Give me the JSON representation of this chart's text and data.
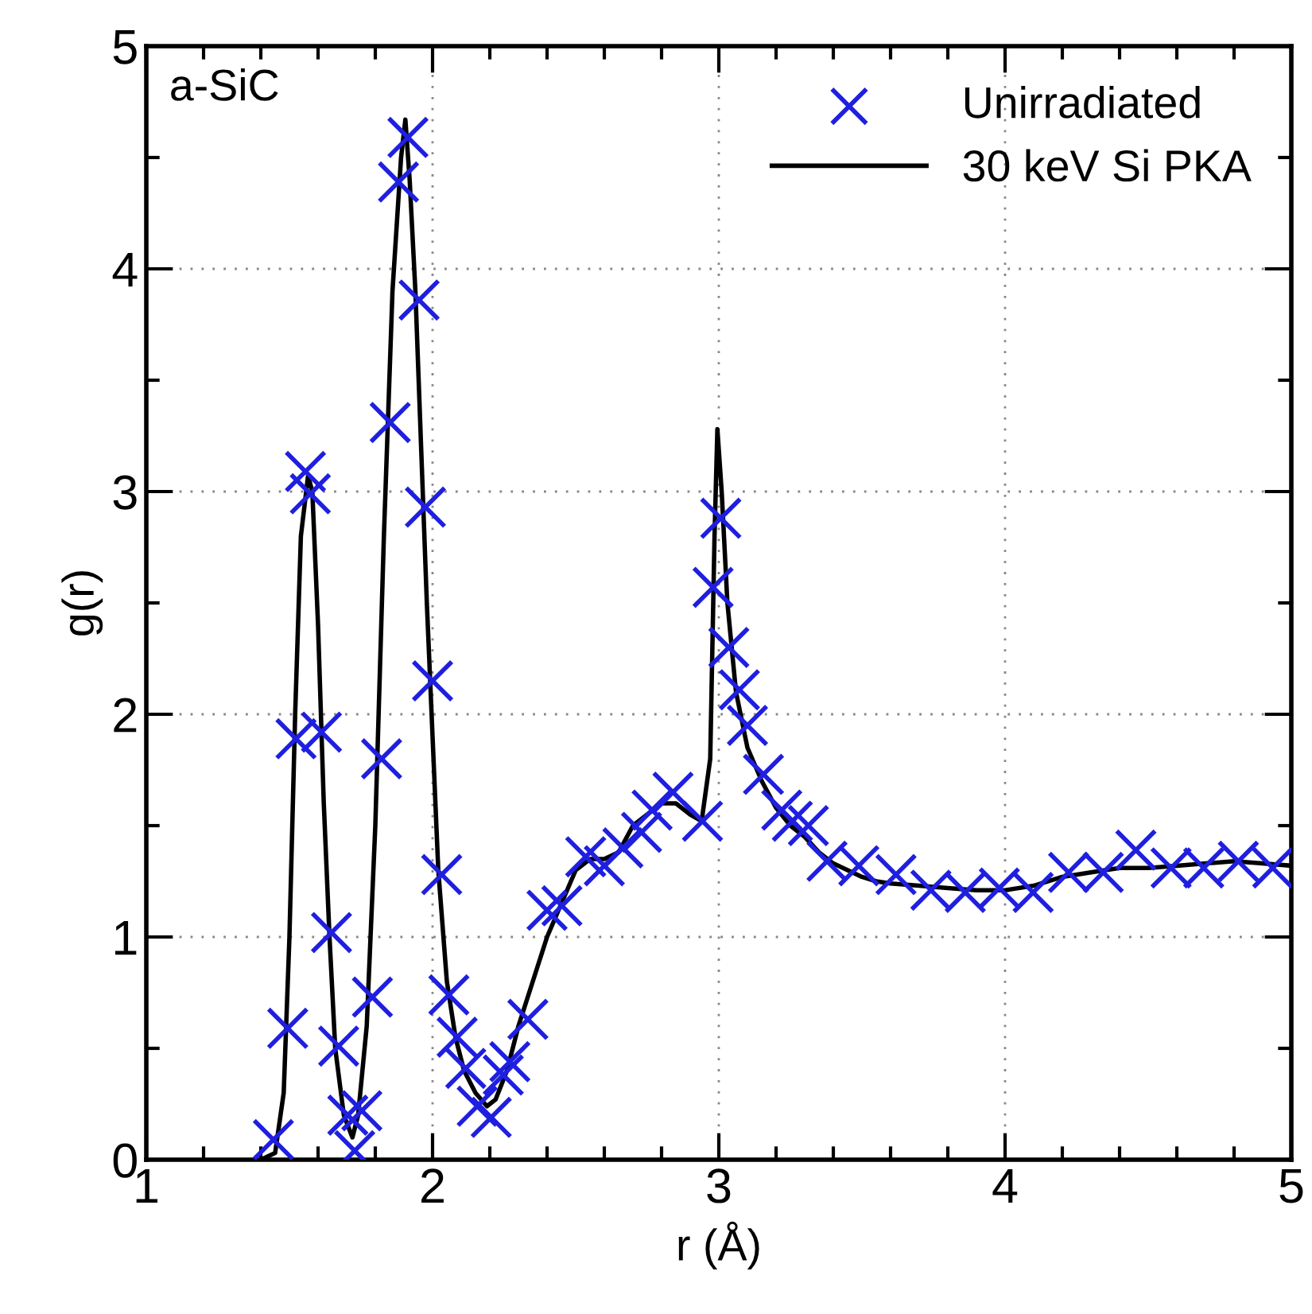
{
  "chart_data": {
    "type": "line",
    "xlabel": "r (Å)",
    "ylabel": "g(r)",
    "annotations": [
      "a-SiC"
    ],
    "xlim": [
      1,
      5
    ],
    "ylim": [
      0,
      5
    ],
    "xticks": [
      1,
      2,
      3,
      4,
      5
    ],
    "yticks": [
      0,
      1,
      2,
      3,
      4,
      5
    ],
    "grid": true,
    "legend": "top right",
    "series": [
      {
        "name": "Unirradiated",
        "type": "scatter",
        "marker": "cross",
        "color": "#1f1fe0",
        "x": [
          1.444,
          1.494,
          1.523,
          1.556,
          1.573,
          1.612,
          1.647,
          1.672,
          1.704,
          1.728,
          1.753,
          1.79,
          1.822,
          1.852,
          1.881,
          1.914,
          1.953,
          1.975,
          2.0,
          2.032,
          2.057,
          2.086,
          2.116,
          2.156,
          2.205,
          2.247,
          2.27,
          2.333,
          2.4,
          2.452,
          2.535,
          2.6,
          2.665,
          2.73,
          2.767,
          2.84,
          2.943,
          2.98,
          3.007,
          3.035,
          3.072,
          3.1,
          3.156,
          3.22,
          3.257,
          3.313,
          3.378,
          3.489,
          3.619,
          3.741,
          3.861,
          3.98,
          4.098,
          4.222,
          4.343,
          4.457,
          4.58,
          4.694,
          4.815,
          4.935
        ],
        "values": [
          0.09,
          0.59,
          1.89,
          3.09,
          2.99,
          1.92,
          1.02,
          0.51,
          0.2,
          0.04,
          0.22,
          0.73,
          1.8,
          3.31,
          4.39,
          4.59,
          3.86,
          2.93,
          2.15,
          1.28,
          0.74,
          0.55,
          0.41,
          0.24,
          0.19,
          0.38,
          0.44,
          0.63,
          1.12,
          1.14,
          1.36,
          1.32,
          1.4,
          1.47,
          1.57,
          1.65,
          1.52,
          2.57,
          2.88,
          2.3,
          2.11,
          1.95,
          1.73,
          1.57,
          1.52,
          1.5,
          1.34,
          1.32,
          1.28,
          1.21,
          1.2,
          1.22,
          1.2,
          1.29,
          1.29,
          1.39,
          1.31,
          1.31,
          1.34,
          1.31
        ]
      },
      {
        "name": "30 keV Si PKA",
        "marker": "none",
        "line_style": "solid",
        "color": "#000000",
        "x": [
          1.4,
          1.45,
          1.48,
          1.5,
          1.52,
          1.54,
          1.565,
          1.58,
          1.6,
          1.62,
          1.64,
          1.66,
          1.69,
          1.72,
          1.74,
          1.77,
          1.8,
          1.83,
          1.86,
          1.89,
          1.905,
          1.92,
          1.94,
          1.96,
          1.98,
          2.0,
          2.02,
          2.05,
          2.08,
          2.11,
          2.15,
          2.19,
          2.22,
          2.26,
          2.3,
          2.35,
          2.4,
          2.45,
          2.5,
          2.55,
          2.6,
          2.65,
          2.7,
          2.75,
          2.8,
          2.85,
          2.9,
          2.94,
          2.97,
          2.985,
          2.995,
          3.01,
          3.03,
          3.06,
          3.1,
          3.15,
          3.2,
          3.25,
          3.3,
          3.35,
          3.4,
          3.45,
          3.5,
          3.55,
          3.6,
          3.7,
          3.8,
          3.9,
          4.0,
          4.1,
          4.2,
          4.3,
          4.4,
          4.5,
          4.6,
          4.7,
          4.8,
          4.9,
          5.0
        ],
        "values": [
          0,
          0.03,
          0.3,
          1.0,
          2.0,
          2.8,
          3.07,
          3.0,
          2.4,
          1.6,
          1.0,
          0.5,
          0.2,
          0.1,
          0.2,
          0.6,
          1.5,
          2.8,
          3.9,
          4.5,
          4.67,
          4.4,
          3.9,
          3.2,
          2.5,
          1.9,
          1.3,
          0.8,
          0.55,
          0.4,
          0.3,
          0.24,
          0.27,
          0.4,
          0.6,
          0.8,
          1.0,
          1.15,
          1.3,
          1.35,
          1.35,
          1.38,
          1.5,
          1.55,
          1.6,
          1.6,
          1.55,
          1.52,
          1.8,
          2.8,
          3.28,
          3.0,
          2.5,
          2.1,
          1.85,
          1.7,
          1.58,
          1.5,
          1.45,
          1.38,
          1.33,
          1.3,
          1.27,
          1.25,
          1.24,
          1.23,
          1.22,
          1.21,
          1.21,
          1.23,
          1.27,
          1.29,
          1.31,
          1.31,
          1.32,
          1.33,
          1.34,
          1.33,
          1.32
        ]
      }
    ]
  }
}
